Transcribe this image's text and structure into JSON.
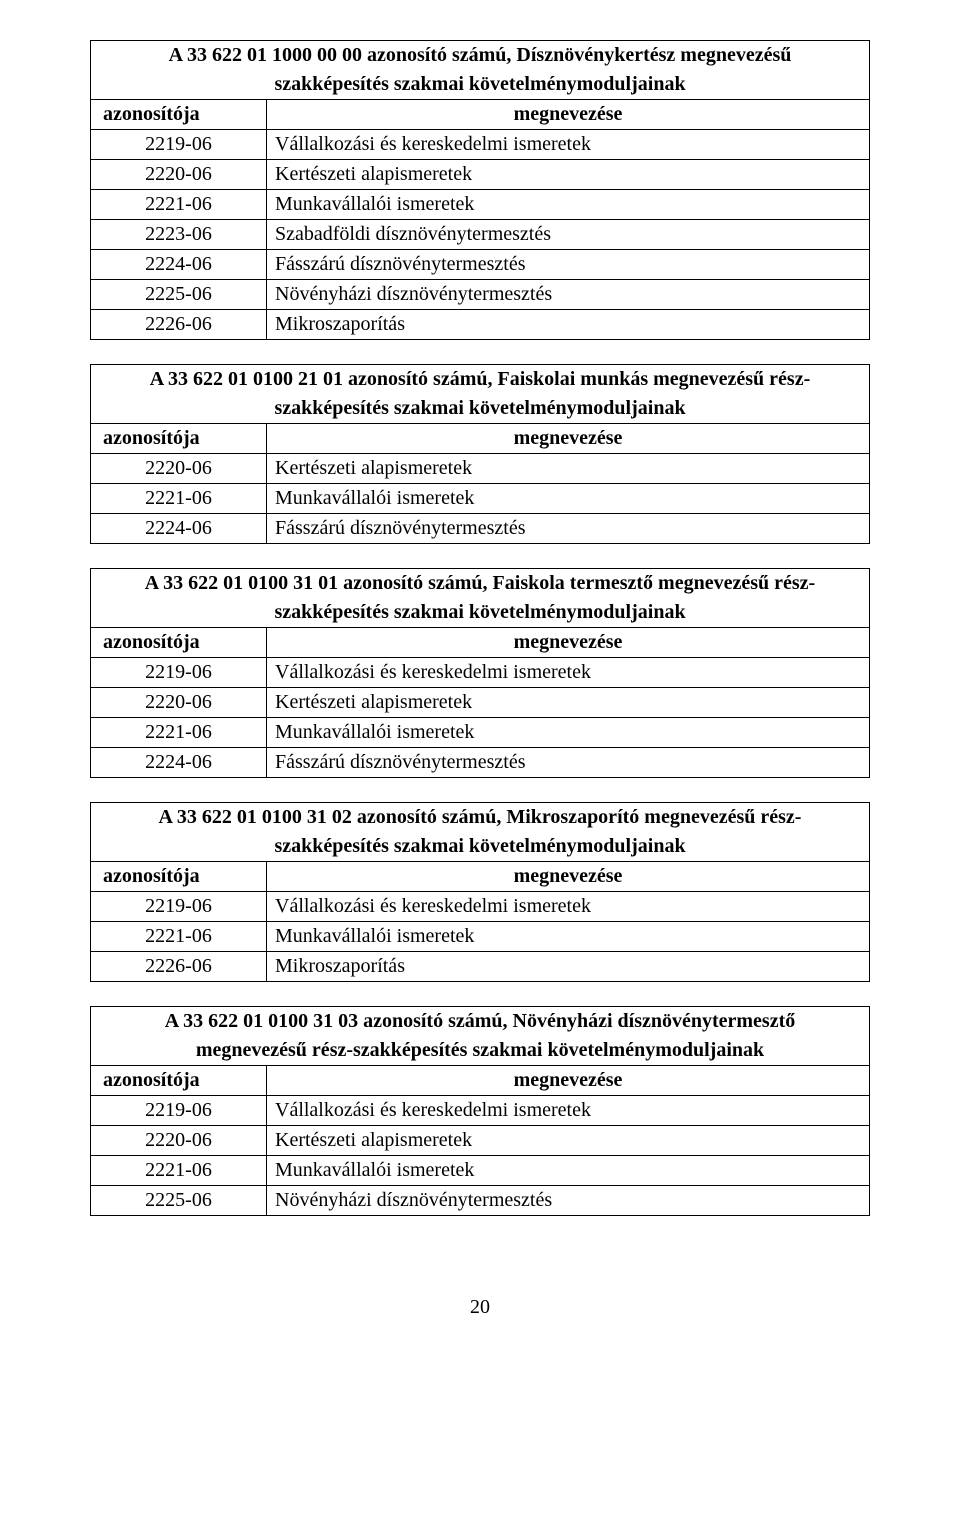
{
  "page_number": "20",
  "header_id_label": "azonosítója",
  "header_name_label": "megnevezése",
  "tables": {
    "t1": {
      "title_line1": "A 33 622 01 1000 00 00 azonosító számú, Dísznövénykertész megnevezésű",
      "title_line2": "szakképesítés szakmai követelménymoduljainak",
      "rows": [
        {
          "id": "2219-06",
          "name": "Vállalkozási és kereskedelmi ismeretek"
        },
        {
          "id": "2220-06",
          "name": "Kertészeti alapismeretek"
        },
        {
          "id": "2221-06",
          "name": "Munkavállalói ismeretek"
        },
        {
          "id": "2223-06",
          "name": "Szabadföldi dísznövénytermesztés"
        },
        {
          "id": "2224-06",
          "name": "Fásszárú dísznövénytermesztés"
        },
        {
          "id": "2225-06",
          "name": "Növényházi dísznövénytermesztés"
        },
        {
          "id": "2226-06",
          "name": "Mikroszaporítás"
        }
      ]
    },
    "t2": {
      "title_line1": "A 33 622 01 0100 21 01 azonosító számú, Faiskolai munkás megnevezésű rész-",
      "title_line2": "szakképesítés szakmai követelménymoduljainak",
      "rows": [
        {
          "id": "2220-06",
          "name": "Kertészeti alapismeretek"
        },
        {
          "id": "2221-06",
          "name": "Munkavállalói ismeretek"
        },
        {
          "id": "2224-06",
          "name": "Fásszárú dísznövénytermesztés"
        }
      ]
    },
    "t3": {
      "title_line1": "A 33 622 01 0100 31 01 azonosító számú, Faiskola termesztő megnevezésű rész-",
      "title_line2": "szakképesítés szakmai követelménymoduljainak",
      "rows": [
        {
          "id": "2219-06",
          "name": "Vállalkozási és kereskedelmi ismeretek"
        },
        {
          "id": "2220-06",
          "name": "Kertészeti alapismeretek"
        },
        {
          "id": "2221-06",
          "name": "Munkavállalói ismeretek"
        },
        {
          "id": "2224-06",
          "name": "Fásszárú dísznövénytermesztés"
        }
      ]
    },
    "t4": {
      "title_line1": "A 33 622 01 0100 31 02 azonosító számú, Mikroszaporító megnevezésű rész-",
      "title_line2": "szakképesítés szakmai követelménymoduljainak",
      "rows": [
        {
          "id": "2219-06",
          "name": "Vállalkozási és kereskedelmi ismeretek"
        },
        {
          "id": "2221-06",
          "name": "Munkavállalói ismeretek"
        },
        {
          "id": "2226-06",
          "name": "Mikroszaporítás"
        }
      ]
    },
    "t5": {
      "title_line1": "A 33 622 01 0100 31 03 azonosító számú, Növényházi dísznövénytermesztő",
      "title_line2": "megnevezésű rész-szakképesítés szakmai követelménymoduljainak",
      "rows": [
        {
          "id": "2219-06",
          "name": "Vállalkozási és kereskedelmi ismeretek"
        },
        {
          "id": "2220-06",
          "name": "Kertészeti alapismeretek"
        },
        {
          "id": "2221-06",
          "name": "Munkavállalói ismeretek"
        },
        {
          "id": "2225-06",
          "name": "Növényházi dísznövénytermesztés"
        }
      ]
    }
  }
}
